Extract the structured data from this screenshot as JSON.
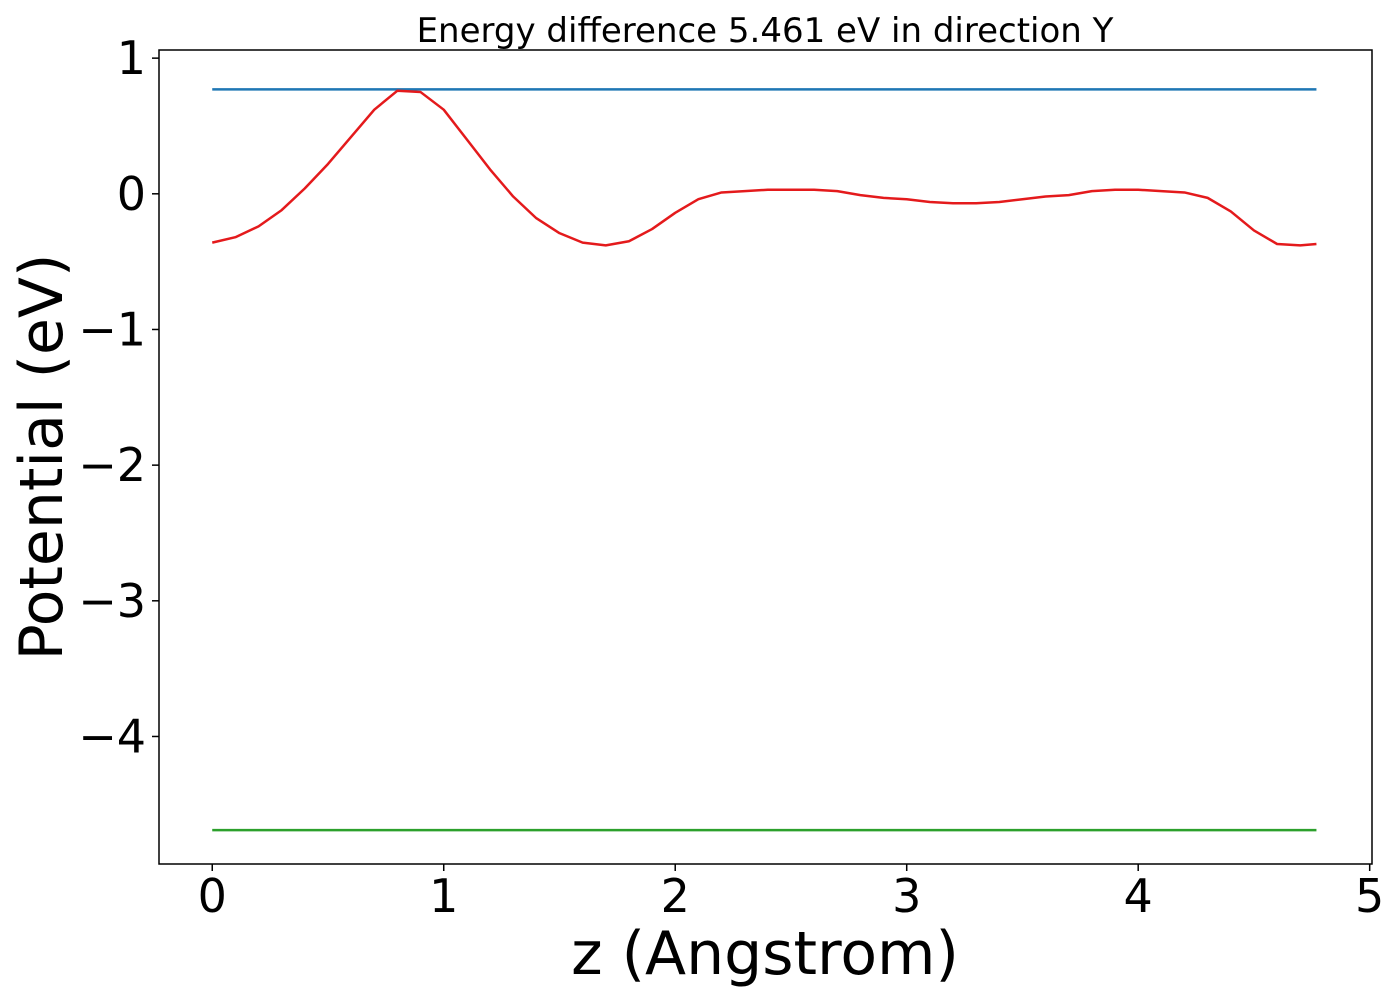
{
  "chart_data": {
    "type": "line",
    "title": "Energy difference 5.461 eV in direction Y",
    "xlabel": "z (Angstrom)",
    "ylabel": "Potential (eV)",
    "xlim": [
      -0.23,
      5.01
    ],
    "ylim": [
      -4.94,
      1.06
    ],
    "xticks": [
      0,
      1,
      2,
      3,
      4,
      5
    ],
    "xtick_labels": [
      "0",
      "1",
      "2",
      "3",
      "4",
      "5"
    ],
    "yticks": [
      1,
      0,
      -1,
      -2,
      -3,
      -4
    ],
    "ytick_labels": [
      "1",
      "0",
      "−1",
      "−2",
      "−3",
      "−4"
    ],
    "grid": false,
    "series": [
      {
        "color": "#1f77b4",
        "x": [
          0,
          4.77
        ],
        "y": [
          0.77,
          0.77
        ]
      },
      {
        "color": "#2ca02c",
        "x": [
          0,
          4.77
        ],
        "y": [
          -4.69,
          -4.69
        ]
      },
      {
        "color": "#e41a1c",
        "x": [
          0,
          0.1,
          0.2,
          0.3,
          0.4,
          0.5,
          0.6,
          0.7,
          0.8,
          0.9,
          1.0,
          1.1,
          1.2,
          1.3,
          1.4,
          1.5,
          1.6,
          1.7,
          1.8,
          1.9,
          2.0,
          2.1,
          2.2,
          2.3,
          2.4,
          2.5,
          2.6,
          2.7,
          2.8,
          2.9,
          3.0,
          3.1,
          3.2,
          3.3,
          3.4,
          3.5,
          3.6,
          3.7,
          3.8,
          3.9,
          4.0,
          4.1,
          4.2,
          4.3,
          4.4,
          4.5,
          4.6,
          4.7,
          4.77
        ],
        "y": [
          -0.36,
          -0.32,
          -0.24,
          -0.12,
          0.04,
          0.22,
          0.42,
          0.62,
          0.76,
          0.75,
          0.62,
          0.4,
          0.18,
          -0.02,
          -0.18,
          -0.29,
          -0.36,
          -0.38,
          -0.35,
          -0.26,
          -0.14,
          -0.04,
          0.01,
          0.02,
          0.03,
          0.03,
          0.03,
          0.02,
          -0.01,
          -0.03,
          -0.04,
          -0.06,
          -0.07,
          -0.07,
          -0.06,
          -0.04,
          -0.02,
          -0.01,
          0.02,
          0.03,
          0.03,
          0.02,
          0.01,
          -0.03,
          -0.13,
          -0.27,
          -0.37,
          -0.38,
          -0.37
        ]
      }
    ]
  }
}
